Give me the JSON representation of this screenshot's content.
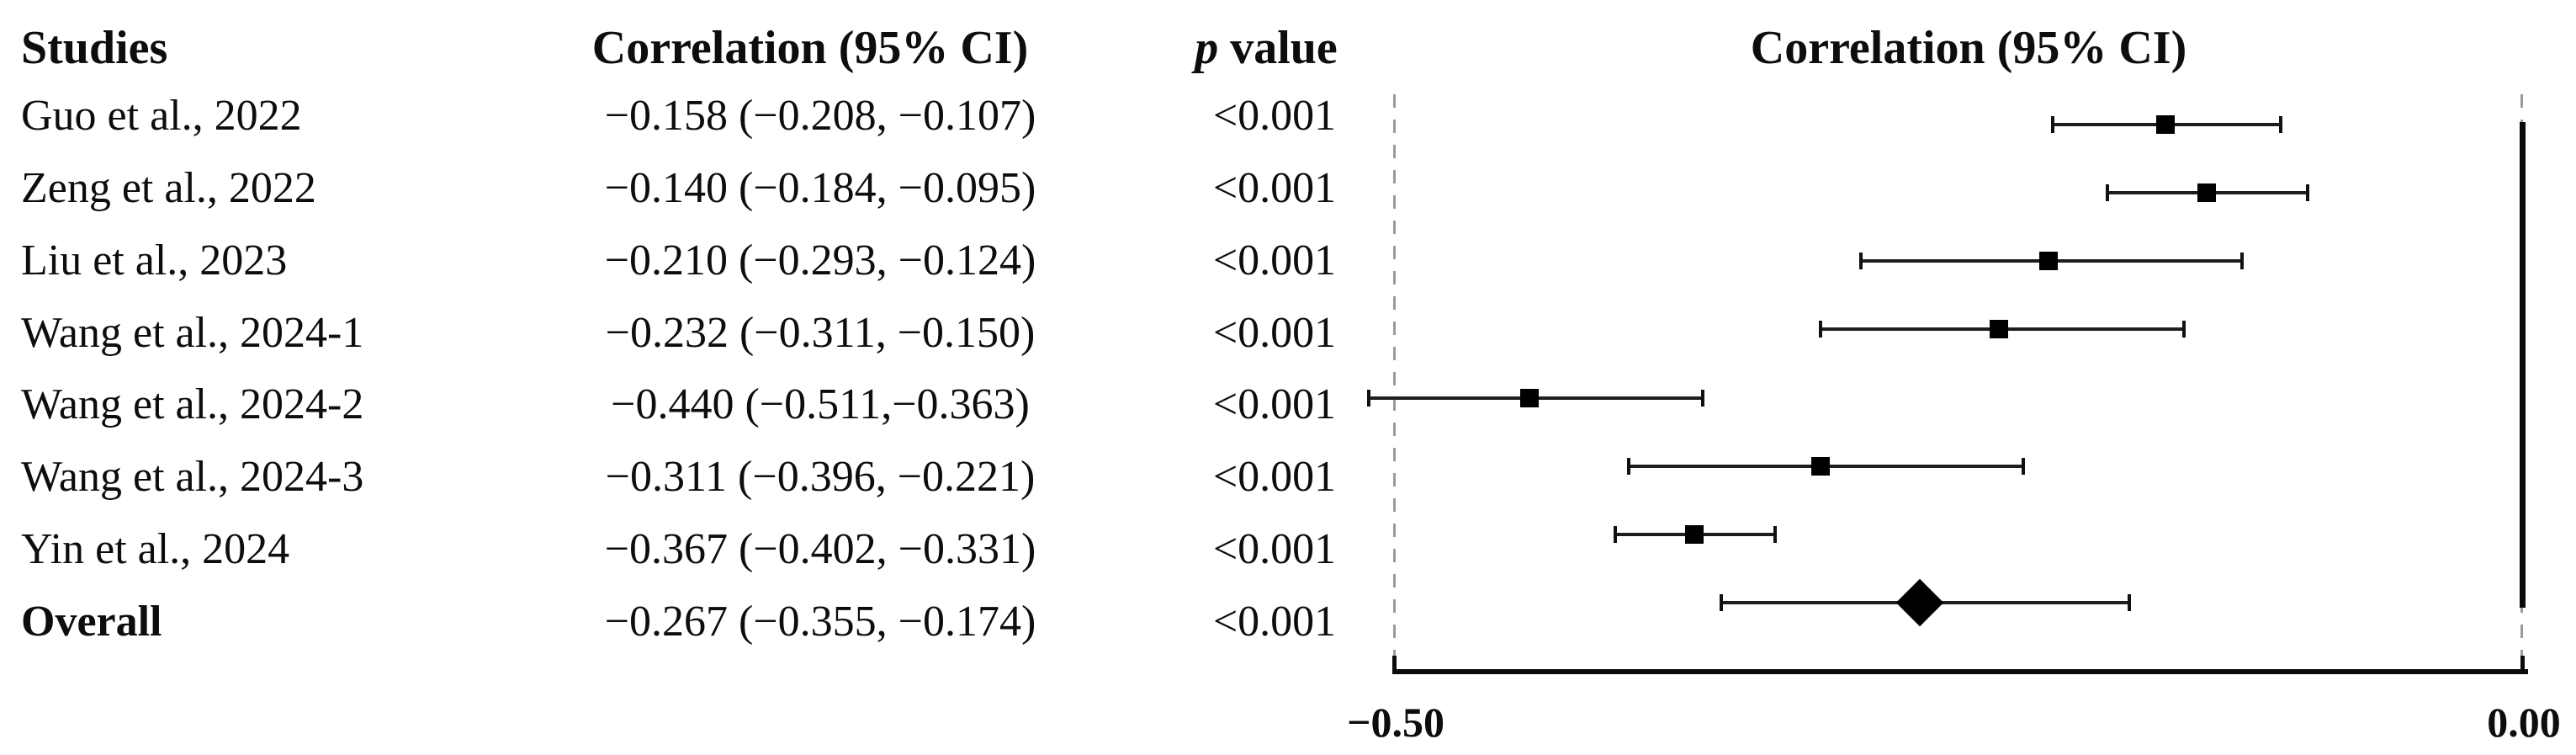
{
  "header": {
    "studies": "Studies",
    "correlation": "Correlation (95% CI)",
    "p_italic": "p",
    "p_rest": "value",
    "plot_title": "Correlation (95% CI)"
  },
  "rows": [
    {
      "study": "Guo et al., 2022",
      "correlation": "−0.158 (−0.208, −0.107)",
      "p": "<0.001",
      "bold": false
    },
    {
      "study": "Zeng et al., 2022",
      "correlation": "−0.140 (−0.184, −0.095)",
      "p": "<0.001",
      "bold": false
    },
    {
      "study": "Liu et al., 2023",
      "correlation": "−0.210 (−0.293, −0.124)",
      "p": "<0.001",
      "bold": false
    },
    {
      "study": "Wang et al., 2024-1",
      "correlation": "−0.232 (−0.311, −0.150)",
      "p": "<0.001",
      "bold": false
    },
    {
      "study": "Wang et al., 2024-2",
      "correlation": "−0.440 (−0.511,−0.363)",
      "p": "<0.001",
      "bold": false
    },
    {
      "study": "Wang et al., 2024-3",
      "correlation": "−0.311 (−0.396, −0.221)",
      "p": "<0.001",
      "bold": false
    },
    {
      "study": "Yin et al., 2024",
      "correlation": "−0.367 (−0.402, −0.331)",
      "p": "<0.001",
      "bold": false
    },
    {
      "study": "Overall",
      "correlation": "−0.267 (−0.355, −0.174)",
      "p": "<0.001",
      "bold": true
    }
  ],
  "chart_data": {
    "type": "scatter",
    "subtype": "forest-plot",
    "title": "Correlation (95% CI)",
    "categories": [
      "Guo et al., 2022",
      "Zeng et al., 2022",
      "Liu et al., 2023",
      "Wang et al., 2024-1",
      "Wang et al., 2024-2",
      "Wang et al., 2024-3",
      "Yin et al., 2024",
      "Overall"
    ],
    "series": [
      {
        "name": "Correlation (95% CI)",
        "estimates": [
          -0.158,
          -0.14,
          -0.21,
          -0.232,
          -0.44,
          -0.311,
          -0.367,
          -0.267
        ],
        "ci_low": [
          -0.208,
          -0.184,
          -0.293,
          -0.311,
          -0.511,
          -0.396,
          -0.402,
          -0.355
        ],
        "ci_high": [
          -0.107,
          -0.095,
          -0.124,
          -0.15,
          -0.363,
          -0.221,
          -0.331,
          -0.174
        ],
        "p_values": [
          "<0.001",
          "<0.001",
          "<0.001",
          "<0.001",
          "<0.001",
          "<0.001",
          "<0.001",
          "<0.001"
        ]
      }
    ],
    "overall_index": 7,
    "xlim": [
      -0.5,
      0.0
    ],
    "x_ticks": [
      -0.5,
      0.0
    ],
    "x_tick_labels": [
      "−0.50",
      "0.00"
    ],
    "reference_line_x": 0.0,
    "grid": false,
    "legend": false
  },
  "axis": {
    "ticks": [
      {
        "label": "−0.50",
        "value": -0.5
      },
      {
        "label": "0.00",
        "value": 0.0
      }
    ]
  },
  "colors": {
    "marker": "#000000",
    "dashed_guide": "#9a9a9a",
    "axis": "#0b0b0b",
    "text": "#0d0d0d"
  }
}
